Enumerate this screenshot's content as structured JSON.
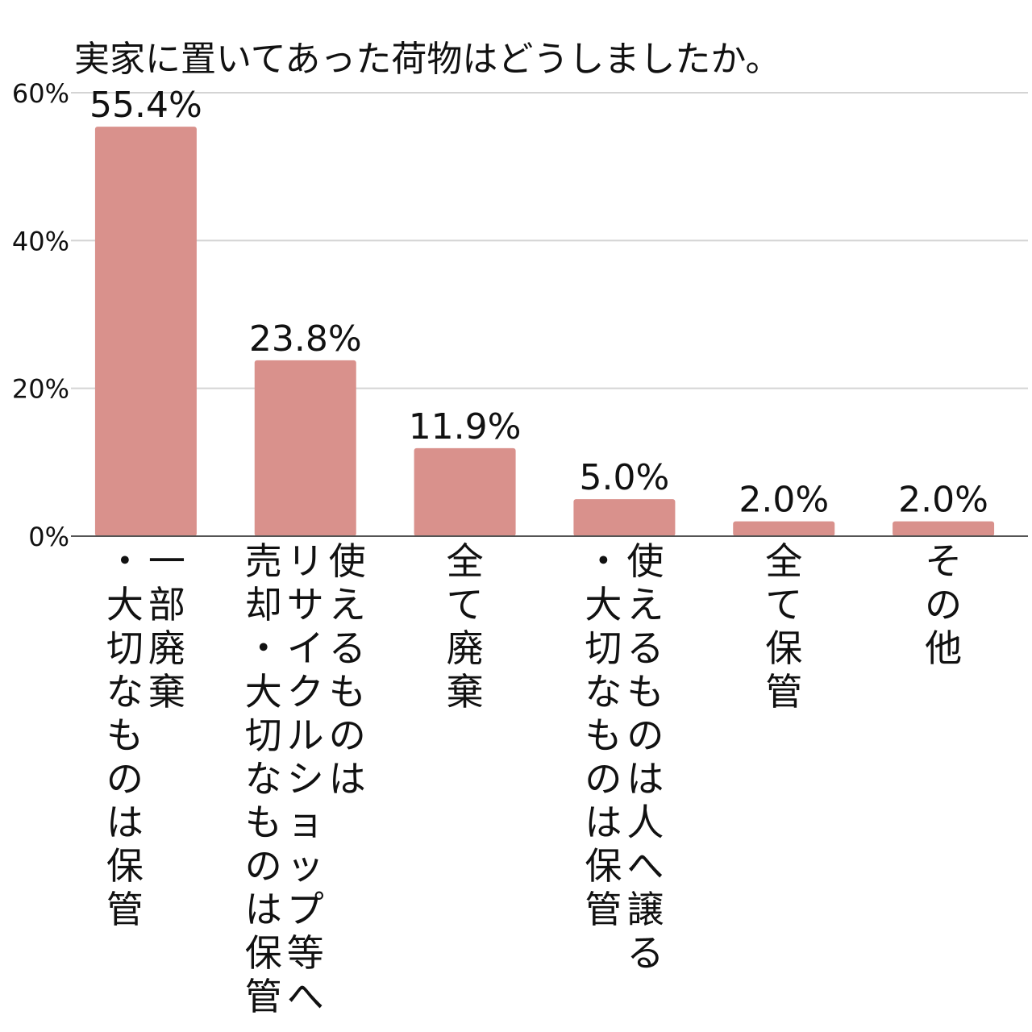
{
  "chart_data": {
    "type": "bar",
    "title": "実家に置いてあった荷物はどうしましたか。",
    "xlabel": "",
    "ylabel": "",
    "ylim": [
      0,
      60
    ],
    "yticks": [
      "0%",
      "20%",
      "40%",
      "60%"
    ],
    "ytick_values": [
      0,
      20,
      40,
      60
    ],
    "grid": true,
    "bar_color": "#d9918c",
    "categories": [
      [
        "一部廃棄",
        "・大切なものは保管"
      ],
      [
        "使えるものは",
        "リサイクルショップ等へ",
        "売却・大切なものは保管"
      ],
      [
        "全て廃棄"
      ],
      [
        "使えるものは人へ譲る",
        "・大切なものは保管"
      ],
      [
        "全て保管"
      ],
      [
        "その他"
      ]
    ],
    "values": [
      55.4,
      23.8,
      11.9,
      5.0,
      2.0,
      2.0
    ],
    "value_labels": [
      "55.4%",
      "23.8%",
      "11.9%",
      "5.0%",
      "2.0%",
      "2.0%"
    ]
  }
}
